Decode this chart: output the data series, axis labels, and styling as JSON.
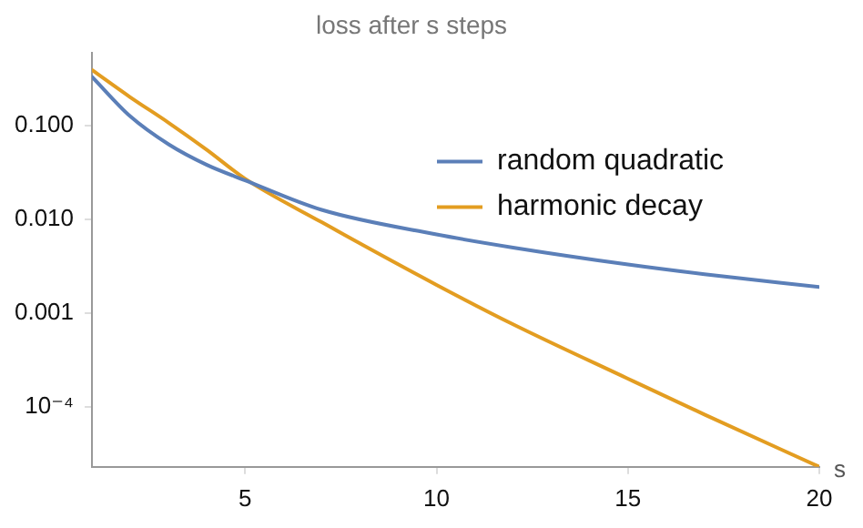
{
  "chart_data": {
    "type": "line",
    "title": "loss after s steps",
    "xlabel": "s",
    "xlim": [
      1,
      20
    ],
    "xticks": [
      5,
      10,
      15,
      20
    ],
    "ylim": [
      2.3e-05,
      0.6
    ],
    "yticks": [
      {
        "value": 0.1,
        "label": "0.100"
      },
      {
        "value": 0.01,
        "label": "0.010"
      },
      {
        "value": 0.001,
        "label": "0.001"
      },
      {
        "value": 0.0001,
        "label": "10⁻⁴"
      }
    ],
    "log": "y",
    "grid": false,
    "legend": "top right",
    "marker": "none",
    "line_style": "solid",
    "series": [
      {
        "name": "random quadratic",
        "color": "#5b7fb8",
        "x": [
          1,
          2,
          3,
          4,
          5,
          7,
          10,
          12,
          15,
          17,
          20
        ],
        "values": [
          0.33,
          0.125,
          0.063,
          0.038,
          0.026,
          0.0126,
          0.0069,
          0.005,
          0.0033,
          0.0026,
          0.0019
        ]
      },
      {
        "name": "harmonic decay",
        "color": "#e39d21",
        "x": [
          1,
          2,
          3,
          4,
          5,
          7,
          10,
          12,
          15,
          17,
          20
        ],
        "values": [
          0.39,
          0.2,
          0.107,
          0.055,
          0.027,
          0.0093,
          0.002,
          0.00076,
          0.0002,
          8.3e-05,
          2.3e-05
        ]
      }
    ]
  }
}
